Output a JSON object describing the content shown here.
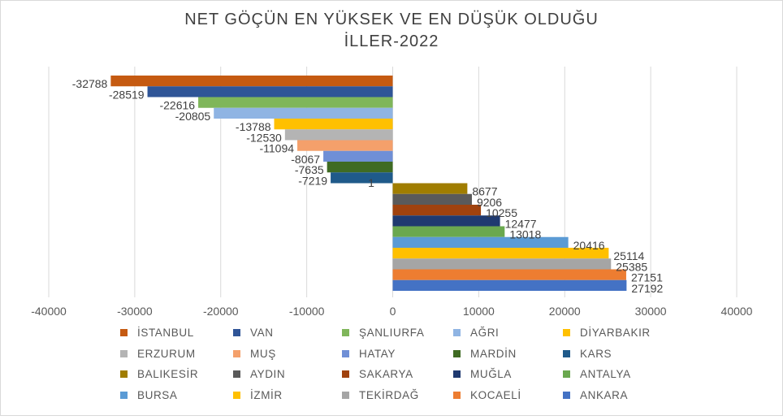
{
  "chart_data": {
    "type": "bar",
    "orientation": "horizontal",
    "title_line1": "NET GÖÇÜN EN YÜKSEK VE EN DÜŞÜK OLDUĞU",
    "title_line2": "İLLER-2022",
    "xlim": [
      -40000,
      40000
    ],
    "x_ticks": [
      -40000,
      -30000,
      -20000,
      -10000,
      0,
      10000,
      20000,
      30000,
      40000
    ],
    "grid": true,
    "legend_position": "bottom",
    "stray_label": "1",
    "series": [
      {
        "name": "İSTANBUL",
        "value": -32788,
        "label": "-32788",
        "color": "#c55a11"
      },
      {
        "name": "VAN",
        "value": -28519,
        "label": "-28519",
        "color": "#2f5597"
      },
      {
        "name": "ŞANLIURFA",
        "value": -22616,
        "label": "-22616",
        "color": "#7fb65a"
      },
      {
        "name": "AĞRI",
        "value": -20805,
        "label": "-20805",
        "color": "#8fb4e3"
      },
      {
        "name": "DİYARBAKIR",
        "value": -13788,
        "label": "-13788",
        "color": "#ffc000"
      },
      {
        "name": "ERZURUM",
        "value": -12530,
        "label": "-12530",
        "color": "#b4b4b4"
      },
      {
        "name": "MUŞ",
        "value": -11094,
        "label": "-11094",
        "color": "#f4a06b"
      },
      {
        "name": "HATAY",
        "value": -8067,
        "label": "-8067",
        "color": "#6f8fd6"
      },
      {
        "name": "MARDİN",
        "value": -7635,
        "label": "-7635",
        "color": "#3f6b23"
      },
      {
        "name": "KARS",
        "value": -7219,
        "label": "-7219",
        "color": "#1f5a8a"
      },
      {
        "name": "BALIKESİR",
        "value": 8677,
        "label": "8677",
        "color": "#a07d00"
      },
      {
        "name": "AYDIN",
        "value": 9206,
        "label": "9206",
        "color": "#5a5a5a"
      },
      {
        "name": "SAKARYA",
        "value": 10255,
        "label": "10255",
        "color": "#a0420e"
      },
      {
        "name": "MUĞLA",
        "value": 12477,
        "label": "12477",
        "color": "#1f3a70"
      },
      {
        "name": "ANTALYA",
        "value": 13018,
        "label": "13018",
        "color": "#6aa84f"
      },
      {
        "name": "BURSA",
        "value": 20416,
        "label": "20416",
        "color": "#5b9bd5"
      },
      {
        "name": "İZMİR",
        "value": 25114,
        "label": "25114",
        "color": "#ffc000"
      },
      {
        "name": "TEKİRDAĞ",
        "value": 25385,
        "label": "25385",
        "color": "#a5a5a5"
      },
      {
        "name": "KOCAELİ",
        "value": 27151,
        "label": "27151",
        "color": "#ed7d31"
      },
      {
        "name": "ANKARA",
        "value": 27192,
        "label": "27192",
        "color": "#4472c4"
      }
    ]
  }
}
